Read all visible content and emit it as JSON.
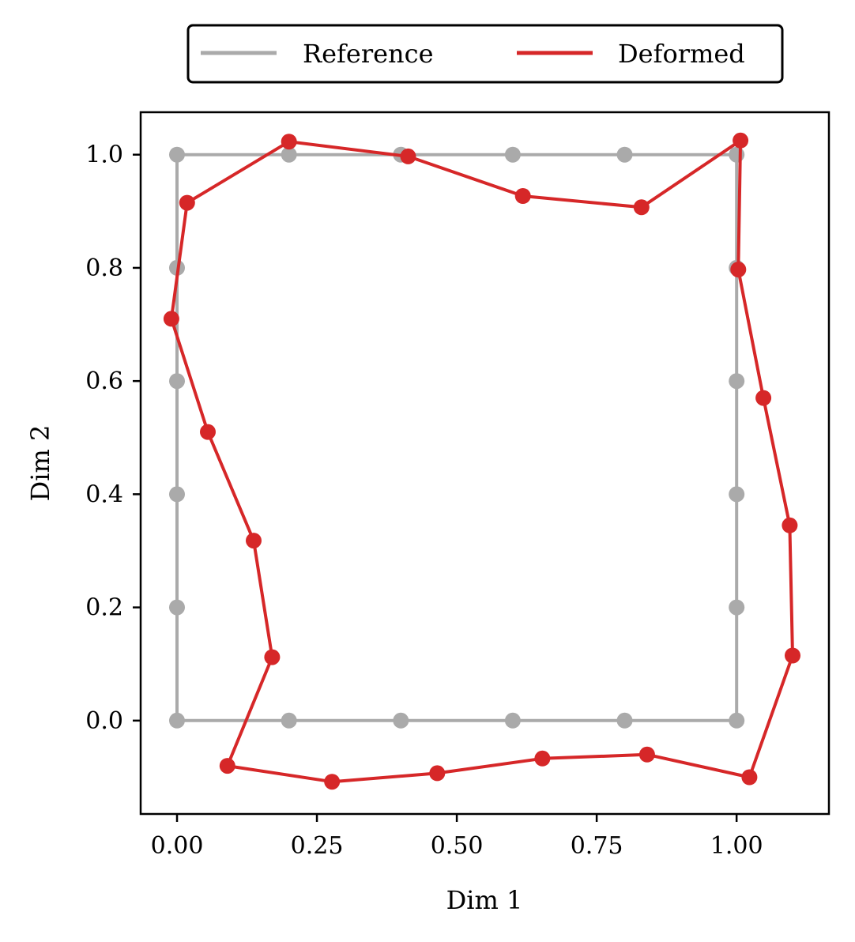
{
  "chart_data": {
    "type": "line",
    "xlabel": "Dim 1",
    "ylabel": "Dim 2",
    "xlim": [
      -0.065,
      1.165
    ],
    "ylim": [
      -0.165,
      1.075
    ],
    "x_ticks": [
      "0.00",
      "0.25",
      "0.50",
      "0.75",
      "1.00"
    ],
    "x_tick_values": [
      0,
      0.25,
      0.5,
      0.75,
      1.0
    ],
    "y_ticks": [
      "0.0",
      "0.2",
      "0.4",
      "0.6",
      "0.8",
      "1.0"
    ],
    "y_tick_values": [
      0,
      0.2,
      0.4,
      0.6,
      0.8,
      1.0
    ],
    "grid": false,
    "legend_position": "top-center, outside plot",
    "series": [
      {
        "name": "Reference",
        "color": "#aaaaaa",
        "closed": true,
        "points": [
          [
            0,
            0
          ],
          [
            0.2,
            0
          ],
          [
            0.4,
            0
          ],
          [
            0.6,
            0
          ],
          [
            0.8,
            0
          ],
          [
            1.0,
            0
          ],
          [
            1.0,
            0.2
          ],
          [
            1.0,
            0.4
          ],
          [
            1.0,
            0.6
          ],
          [
            1.0,
            0.8
          ],
          [
            1.0,
            1.0
          ],
          [
            0.8,
            1.0
          ],
          [
            0.6,
            1.0
          ],
          [
            0.4,
            1.0
          ],
          [
            0.2,
            1.0
          ],
          [
            0,
            1.0
          ],
          [
            0,
            0.8
          ],
          [
            0,
            0.6
          ],
          [
            0,
            0.4
          ],
          [
            0,
            0.2
          ]
        ]
      },
      {
        "name": "Deformed",
        "color": "#d62728",
        "closed": true,
        "points": [
          [
            0.09,
            -0.08
          ],
          [
            0.277,
            -0.108
          ],
          [
            0.465,
            -0.093
          ],
          [
            0.653,
            -0.067
          ],
          [
            0.84,
            -0.06
          ],
          [
            1.023,
            -0.1
          ],
          [
            1.1,
            0.115
          ],
          [
            1.095,
            0.345
          ],
          [
            1.048,
            0.57
          ],
          [
            1.003,
            0.797
          ],
          [
            1.007,
            1.025
          ],
          [
            0.83,
            0.907
          ],
          [
            0.618,
            0.927
          ],
          [
            0.413,
            0.997
          ],
          [
            0.2,
            1.023
          ],
          [
            0.018,
            0.915
          ],
          [
            -0.01,
            0.71
          ],
          [
            0.055,
            0.51
          ],
          [
            0.137,
            0.318
          ],
          [
            0.17,
            0.112
          ]
        ]
      }
    ]
  }
}
